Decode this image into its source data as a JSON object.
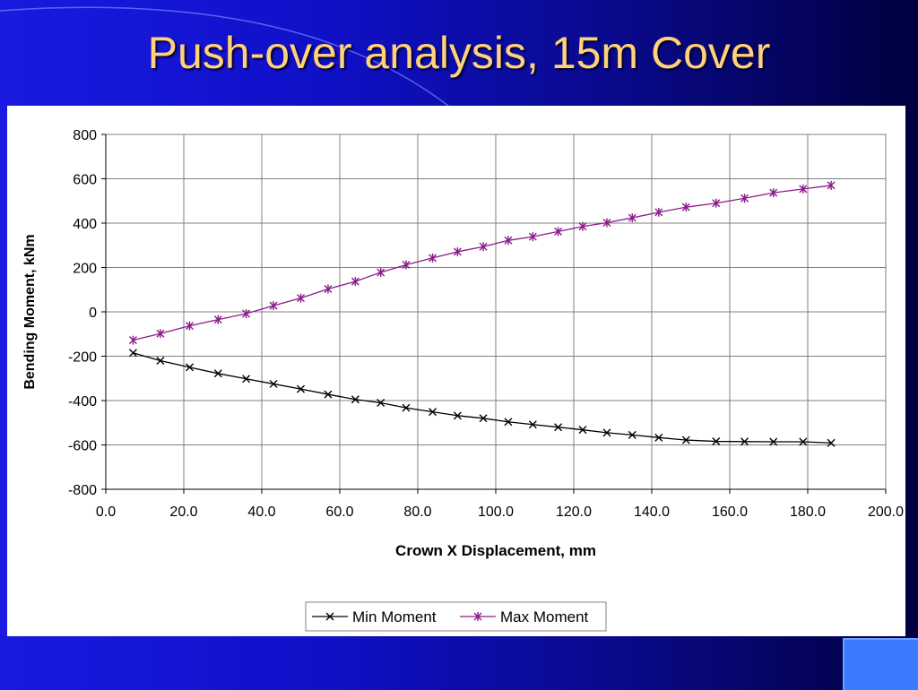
{
  "slide": {
    "title": "Push-over analysis, 15m Cover",
    "colors": {
      "background": "#1010c8",
      "title": "#ffd27a",
      "panel": "#ffffff",
      "corner_block": "#3a7bff"
    }
  },
  "chart_data": {
    "type": "line",
    "xlabel": "Crown X Displacement, mm",
    "ylabel": "Bending Moment, kNm",
    "xlim": [
      0,
      200
    ],
    "ylim": [
      -800,
      800
    ],
    "x_ticks": [
      "0.0",
      "20.0",
      "40.0",
      "60.0",
      "80.0",
      "100.0",
      "120.0",
      "140.0",
      "160.0",
      "180.0",
      "200.0"
    ],
    "y_ticks": [
      "800",
      "600",
      "400",
      "200",
      "0",
      "-200",
      "-400",
      "-600",
      "-800"
    ],
    "grid": true,
    "legend_position": "bottom",
    "series": [
      {
        "name": "Min Moment",
        "color": "#000000",
        "marker": "x",
        "x": [
          7.0,
          14.0,
          21.5,
          28.8,
          36.0,
          43.0,
          50.0,
          57.0,
          64.0,
          70.5,
          77.0,
          83.8,
          90.2,
          96.8,
          103.2,
          109.5,
          116.0,
          122.3,
          128.5,
          135.0,
          141.8,
          148.8,
          156.5,
          163.8,
          171.2,
          178.8,
          186.0
        ],
        "y": [
          -185,
          -220,
          -250,
          -278,
          -302,
          -325,
          -348,
          -372,
          -395,
          -410,
          -433,
          -451,
          -468,
          -480,
          -496,
          -508,
          -520,
          -532,
          -545,
          -555,
          -567,
          -578,
          -584,
          -585,
          -586,
          -586,
          -591
        ]
      },
      {
        "name": "Max Moment",
        "color": "#8b1a8b",
        "marker": "star",
        "x": [
          7.0,
          14.0,
          21.5,
          28.8,
          36.0,
          43.0,
          50.0,
          57.0,
          64.0,
          70.5,
          77.0,
          83.8,
          90.2,
          96.8,
          103.2,
          109.5,
          116.0,
          122.3,
          128.5,
          135.0,
          141.8,
          148.8,
          156.5,
          163.8,
          171.2,
          178.8,
          186.0
        ],
        "y": [
          -128,
          -98,
          -63,
          -35,
          -8,
          28,
          62,
          103,
          137,
          178,
          212,
          243,
          271,
          294,
          322,
          339,
          362,
          385,
          402,
          424,
          449,
          472,
          490,
          512,
          537,
          554,
          570
        ]
      }
    ]
  }
}
